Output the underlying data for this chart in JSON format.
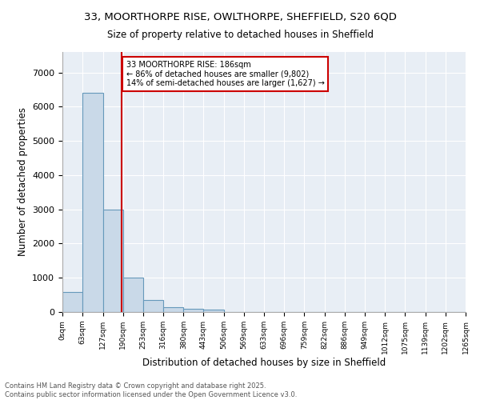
{
  "title1": "33, MOORTHORPE RISE, OWLTHORPE, SHEFFIELD, S20 6QD",
  "title2": "Size of property relative to detached houses in Sheffield",
  "xlabel": "Distribution of detached houses by size in Sheffield",
  "ylabel": "Number of detached properties",
  "bin_edges": [
    0,
    63,
    127,
    190,
    253,
    316,
    380,
    443,
    506,
    569,
    633,
    696,
    759,
    822,
    886,
    949,
    1012,
    1075,
    1139,
    1202,
    1265
  ],
  "bin_counts": [
    580,
    6400,
    3000,
    1000,
    350,
    150,
    100,
    75,
    10,
    5,
    3,
    2,
    1,
    1,
    0,
    0,
    0,
    0,
    0,
    0
  ],
  "bar_color": "#c9d9e8",
  "bar_edge_color": "#6699bb",
  "property_value": 186,
  "annotation_line1": "33 MOORTHORPE RISE: 186sqm",
  "annotation_line2": "← 86% of detached houses are smaller (9,802)",
  "annotation_line3": "14% of semi-detached houses are larger (1,627) →",
  "vline_color": "#cc0000",
  "annotation_box_color": "#ffffff",
  "annotation_box_edge_color": "#cc0000",
  "background_color": "#e8eef5",
  "ylim": [
    0,
    7600
  ],
  "yticks": [
    0,
    1000,
    2000,
    3000,
    4000,
    5000,
    6000,
    7000
  ],
  "footer1": "Contains HM Land Registry data © Crown copyright and database right 2025.",
  "footer2": "Contains public sector information licensed under the Open Government Licence v3.0."
}
